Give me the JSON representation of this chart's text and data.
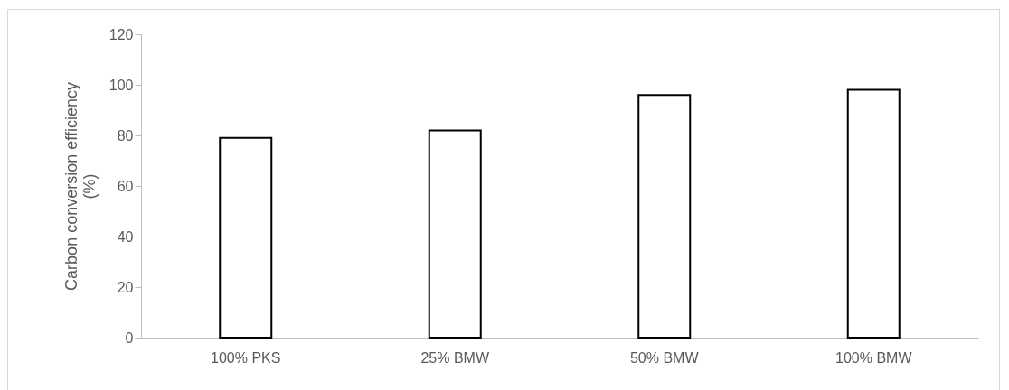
{
  "chart_data": {
    "type": "bar",
    "ylabel": "Carbon conversion efficiency (%)",
    "categories": [
      "100% PKS",
      "25% BMW",
      "50% BMW",
      "100% BMW"
    ],
    "values": [
      79,
      82,
      96,
      98
    ],
    "color": "#ffffff",
    "ylim": [
      0,
      120
    ],
    "yticks": [
      0,
      20,
      40,
      60,
      80,
      100,
      120
    ],
    "grid": false
  }
}
